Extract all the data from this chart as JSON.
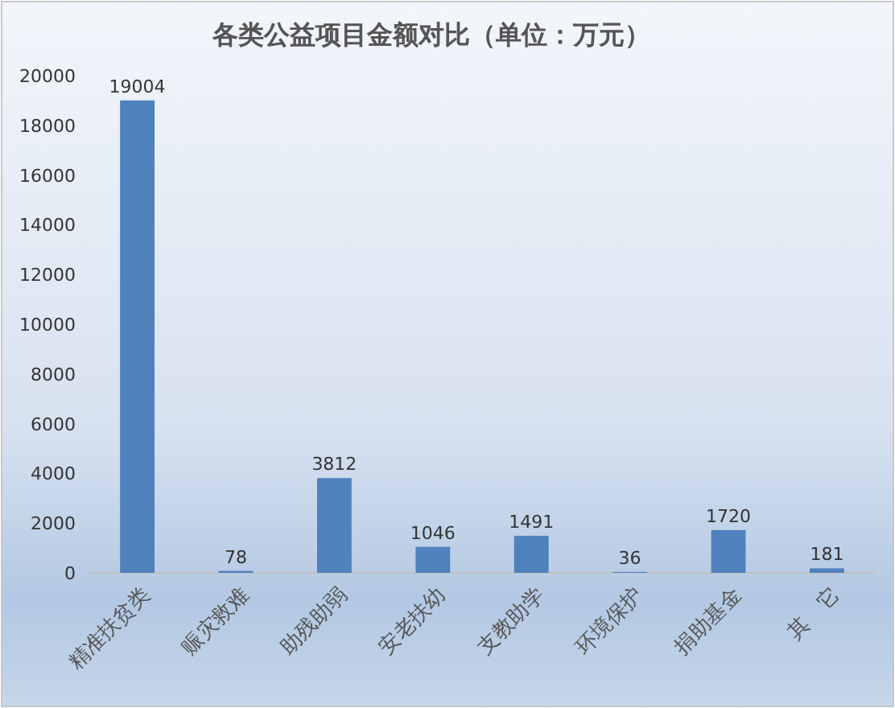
{
  "chart_data": {
    "type": "bar",
    "title": "各类公益项目金额对比（单位：万元）",
    "categories": [
      "精准扶贫类",
      "赈灾救难",
      "助残助弱",
      "安老扶幼",
      "支教助学",
      "环境保护",
      "捐助基金",
      "其　它"
    ],
    "values": [
      19004,
      78,
      3812,
      1046,
      1491,
      36,
      1720,
      181
    ],
    "color": "#4f81bd",
    "ylim": [
      0,
      20000
    ],
    "yticks": [
      0,
      2000,
      4000,
      6000,
      8000,
      10000,
      12000,
      14000,
      16000,
      18000,
      20000
    ],
    "data_labels": true
  }
}
